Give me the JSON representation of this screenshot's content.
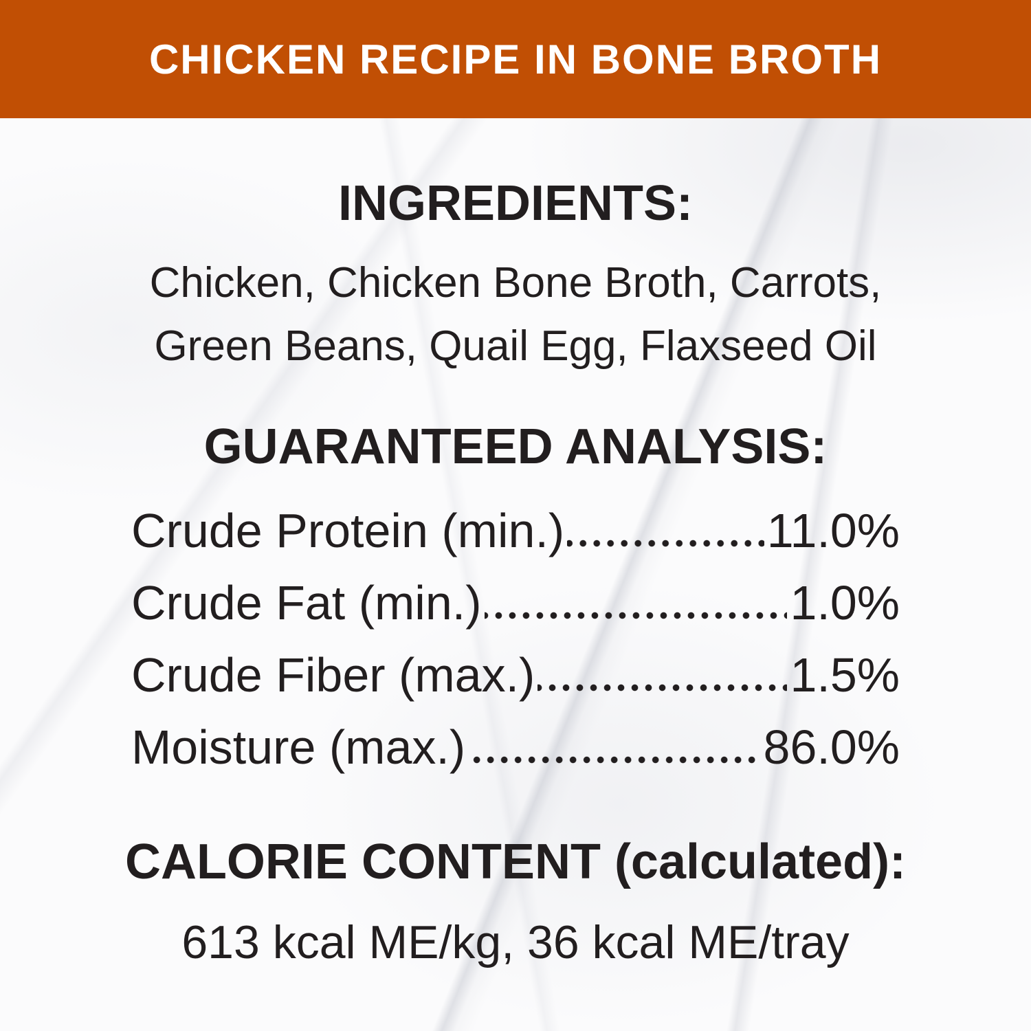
{
  "banner": {
    "title": "CHICKEN RECIPE IN BONE BROTH"
  },
  "ingredients": {
    "heading": "INGREDIENTS:",
    "lines": [
      "Chicken, Chicken Bone Broth, Carrots,",
      "Green Beans, Quail Egg, Flaxseed Oil"
    ]
  },
  "analysis": {
    "heading": "GUARANTEED ANALYSIS:",
    "rows": [
      {
        "label": "Crude Protein (min.)",
        "value": "11.0%"
      },
      {
        "label": "Crude Fat (min.)",
        "value": "1.0%"
      },
      {
        "label": "Crude Fiber (max.)",
        "value": "1.5%"
      },
      {
        "label": "Moisture (max.)",
        "value": "86.0%"
      }
    ]
  },
  "calories": {
    "heading": "CALORIE CONTENT (calculated):",
    "text": "613 kcal ME/kg, 36 kcal ME/tray"
  },
  "colors": {
    "banner_background": "#c14f04",
    "banner_text": "#ffffff",
    "body_text": "#221e1f",
    "background": "#fbfbfc"
  }
}
